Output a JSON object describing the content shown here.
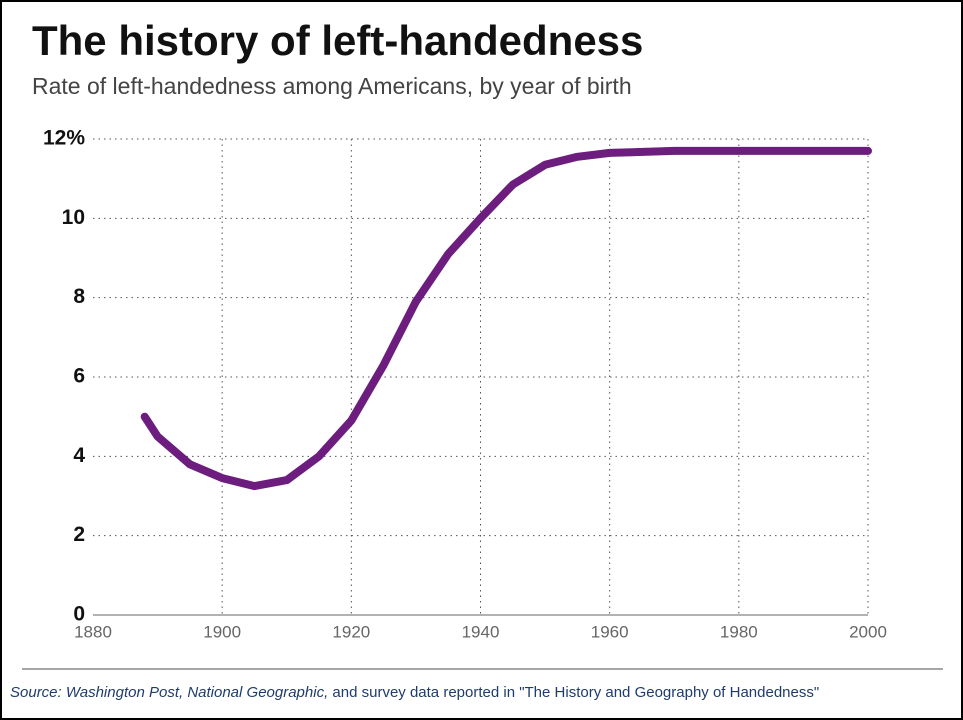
{
  "chart_data": {
    "type": "line",
    "title": "The history of left-handedness",
    "subtitle": "Rate of left-handedness among Americans, by year of birth",
    "source": [
      "Source: Washington Post, National Geographic,",
      " and survey data reported in \"The History and Geography of Handedness\""
    ],
    "x": [
      1888,
      1890,
      1895,
      1900,
      1905,
      1910,
      1915,
      1920,
      1925,
      1930,
      1935,
      1940,
      1945,
      1950,
      1955,
      1960,
      1970,
      1980,
      1990,
      2000
    ],
    "series": [
      {
        "name": "Left-handedness rate",
        "color": "#6c1d7e",
        "values": [
          5.0,
          4.5,
          3.8,
          3.45,
          3.25,
          3.4,
          4.0,
          4.9,
          6.3,
          7.9,
          9.1,
          10.0,
          10.85,
          11.35,
          11.55,
          11.65,
          11.7,
          11.7,
          11.7,
          11.7
        ]
      }
    ],
    "xlim": [
      1880,
      2000
    ],
    "xticks": [
      1880,
      1900,
      1920,
      1940,
      1960,
      1980,
      2000
    ],
    "ylim": [
      0,
      12
    ],
    "yticks": [
      0,
      2,
      4,
      6,
      8,
      10,
      {
        "value": 12,
        "label": "12%"
      }
    ],
    "grid": true
  }
}
